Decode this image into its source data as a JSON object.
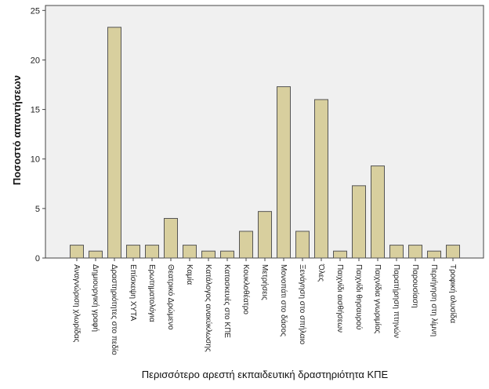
{
  "chart_data": {
    "type": "bar",
    "xlabel": "Περισσότερο αρεστή εκπαιδευτική δραστηριότητα ΚΠΕ",
    "ylabel": "Ποσοστό απαντήσεων",
    "ylim": [
      0,
      25.5
    ],
    "yticks": [
      "0",
      "5",
      "10",
      "15",
      "20",
      "25"
    ],
    "grid": false,
    "colors": {
      "bar_fill": "#d8cf9e",
      "bar_stroke": "#555555",
      "plot_bg": "#f0f0f0",
      "axis": "#444444"
    },
    "categories": [
      "Αναγνώριση χλωρίδας",
      "Δημιουργική γραφή",
      "Δραστηριότητες στο πεδίο",
      "Επίσκεψη ΧΥΤΑ",
      "Ερωτηματολόγια",
      "Θεατρικό Δρώμενο",
      "Καμία",
      "Κατάλογος ανακύκλωσης",
      "Κατασκευές στο ΚΠΕ",
      "Κουκλοθέατρο",
      "Μετρήσεις",
      "Μονοπάτι στο δάσος",
      "Ξενάγηση στο σπήλαιο",
      "Όλες",
      "Παιχνίδι αισθήσεων",
      "Παιχνίδι θησαυρού",
      "Παιχνίδια γνωριμίας",
      "Παρατήρηση πτηνών",
      "Παρουσίαση",
      "Περιήγηση στη λίμνη",
      "Τροφική αλυσίδα"
    ],
    "values": [
      1.3,
      0.7,
      23.3,
      1.3,
      1.3,
      4.0,
      1.3,
      0.7,
      0.7,
      2.7,
      4.7,
      17.3,
      2.7,
      16.0,
      0.7,
      7.3,
      9.3,
      1.3,
      1.3,
      0.7,
      1.3
    ]
  }
}
